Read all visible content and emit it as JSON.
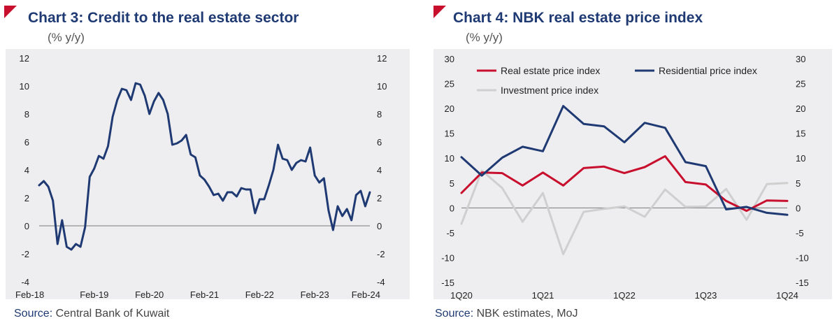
{
  "chart_data": [
    {
      "type": "line",
      "title": "Chart 3: Credit to the real estate sector",
      "unit_label": "(% y/y)",
      "source_label": "Source:",
      "source_text": "Central Bank of Kuwait",
      "xlabel": "",
      "ylabel": "",
      "ylim": [
        -4,
        12
      ],
      "yticks": [
        "-4",
        "-2",
        "0",
        "2",
        "4",
        "6",
        "8",
        "10",
        "12"
      ],
      "xticks": [
        "Feb-18",
        "Feb-19",
        "Feb-20",
        "Feb-21",
        "Feb-22",
        "Feb-23",
        "Feb-24"
      ],
      "x_unit": "months since Feb-18",
      "series": [
        {
          "name": "Credit to the real estate sector",
          "color": "#1f3a73",
          "x": [
            0,
            1,
            2,
            3,
            4,
            5,
            6,
            7,
            8,
            9,
            10,
            11,
            12,
            13,
            14,
            15,
            16,
            17,
            18,
            19,
            20,
            21,
            22,
            23,
            24,
            25,
            26,
            27,
            28,
            29,
            30,
            31,
            32,
            33,
            34,
            35,
            36,
            37,
            38,
            39,
            40,
            41,
            42,
            43,
            44,
            45,
            46,
            47,
            48,
            49,
            50,
            51,
            52,
            53,
            54,
            55,
            56,
            57,
            58,
            59,
            60,
            61,
            62,
            63,
            64,
            65,
            66,
            67,
            68,
            69,
            70,
            71,
            72
          ],
          "values": [
            2.9,
            3.2,
            2.8,
            1.8,
            -1.3,
            0.4,
            -1.5,
            -1.7,
            -1.3,
            -1.5,
            -0.1,
            3.5,
            4.1,
            5.0,
            4.8,
            5.7,
            7.8,
            9.0,
            9.8,
            9.7,
            9.0,
            10.2,
            10.1,
            9.3,
            8.0,
            8.9,
            9.5,
            9.0,
            8.0,
            5.8,
            5.9,
            6.1,
            6.5,
            5.1,
            4.9,
            3.6,
            3.3,
            2.8,
            2.2,
            2.3,
            1.8,
            2.4,
            2.4,
            2.1,
            2.7,
            2.6,
            2.6,
            0.9,
            1.9,
            1.9,
            2.9,
            4.0,
            5.8,
            4.8,
            4.7,
            4.0,
            4.5,
            4.7,
            4.6,
            5.6,
            3.6,
            3.1,
            3.4,
            1.1,
            -0.3,
            1.4,
            0.7,
            1.2,
            0.4,
            2.2,
            2.5,
            1.4,
            2.4
          ]
        }
      ]
    },
    {
      "type": "line",
      "title": "Chart 4: NBK real estate price index",
      "unit_label": "(% y/y)",
      "source_label": "Source:",
      "source_text": "NBK estimates, MoJ",
      "xlabel": "",
      "ylabel": "",
      "ylim": [
        -15,
        30
      ],
      "yticks": [
        "-15",
        "-10",
        "-5",
        "0",
        "5",
        "10",
        "15",
        "20",
        "25",
        "30"
      ],
      "categories": [
        "1Q20",
        "2Q20",
        "3Q20",
        "4Q20",
        "1Q21",
        "2Q21",
        "3Q21",
        "4Q21",
        "1Q22",
        "2Q22",
        "3Q22",
        "4Q22",
        "1Q23",
        "2Q23",
        "3Q23",
        "4Q23",
        "1Q24"
      ],
      "xticks": [
        "1Q20",
        "1Q21",
        "1Q22",
        "1Q23",
        "1Q24"
      ],
      "legend_position": "top-left",
      "series": [
        {
          "name": "Real estate price index",
          "color": "#c8102e",
          "values": [
            3.0,
            7.1,
            7.0,
            4.5,
            7.1,
            4.5,
            8.0,
            8.3,
            7.0,
            8.2,
            10.4,
            5.2,
            4.7,
            1.4,
            -0.6,
            1.5,
            1.4
          ]
        },
        {
          "name": "Residential price index",
          "color": "#1f3a73",
          "values": [
            10.2,
            6.5,
            10.1,
            12.3,
            11.4,
            20.5,
            16.9,
            16.4,
            13.2,
            17.1,
            16.1,
            9.2,
            8.4,
            -0.3,
            0.2,
            -1.0,
            -1.4
          ]
        },
        {
          "name": "Investment price index",
          "color": "#cfcfcf",
          "values": [
            -3.2,
            7.5,
            4.0,
            -2.8,
            3.0,
            -9.3,
            -0.8,
            -0.2,
            0.3,
            -1.8,
            3.7,
            0.2,
            0.3,
            3.8,
            -2.4,
            4.8,
            5.0
          ]
        }
      ]
    }
  ]
}
